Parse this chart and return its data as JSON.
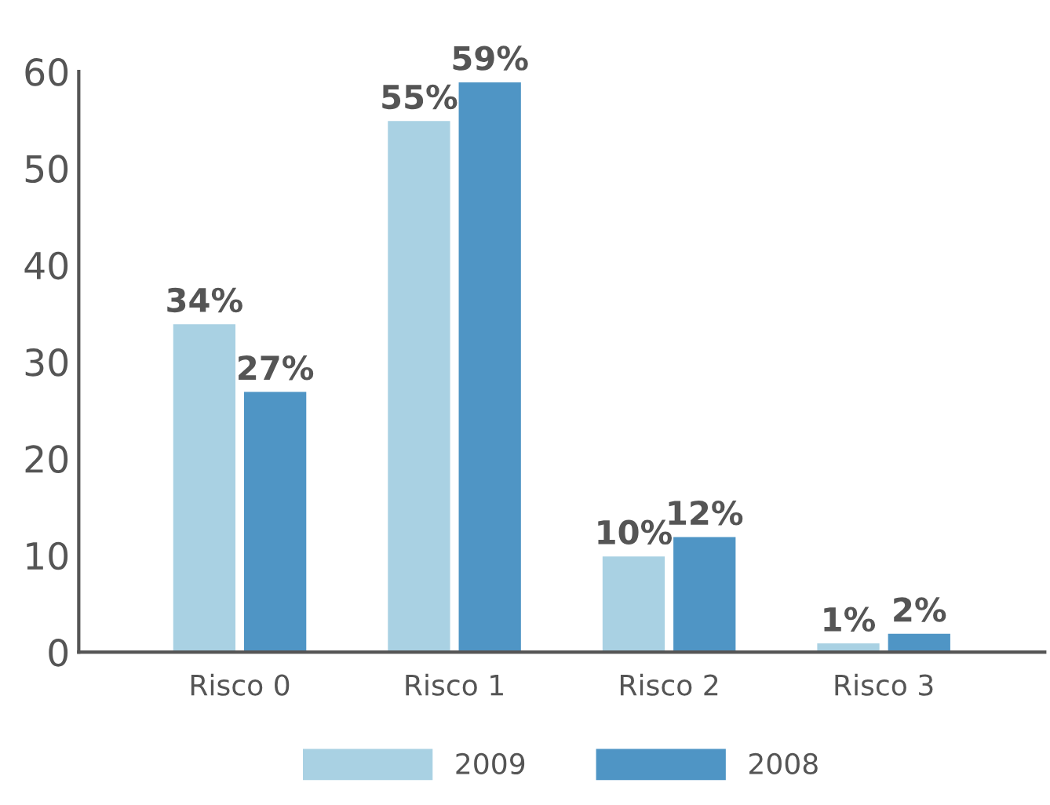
{
  "chart_data": {
    "type": "bar",
    "categories": [
      "Risco 0",
      "Risco 1",
      "Risco 2",
      "Risco 3"
    ],
    "series": [
      {
        "name": "2009",
        "color": "#a9d1e3",
        "values": [
          34,
          55,
          10,
          1
        ],
        "value_labels": [
          "34%",
          "55%",
          "10%",
          "1%"
        ]
      },
      {
        "name": "2008",
        "color": "#4f95c5",
        "values": [
          27,
          59,
          12,
          2
        ],
        "value_labels": [
          "27%",
          "59%",
          "12%",
          "2%"
        ]
      }
    ],
    "ylim": [
      0,
      60
    ],
    "yticks": [
      0,
      10,
      20,
      30,
      40,
      50,
      60
    ],
    "grid": false,
    "legend": "bottom"
  }
}
